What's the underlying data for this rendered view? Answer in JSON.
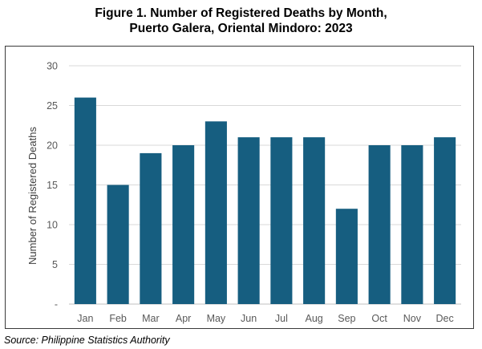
{
  "header": {
    "title_line1": "Figure 1. Number of Registered Deaths by Month,",
    "title_line2": "Puerto Galera, Oriental Mindoro: 2023"
  },
  "footer": {
    "source": "Source: Philippine Statistics Authority"
  },
  "chart_data": {
    "type": "bar",
    "title": "Figure 1. Number of Registered Deaths by Month, Puerto Galera, Oriental Mindoro: 2023",
    "xlabel": "",
    "ylabel": "Number of Registered Deaths",
    "categories": [
      "Jan",
      "Feb",
      "Mar",
      "Apr",
      "May",
      "Jun",
      "Jul",
      "Aug",
      "Sep",
      "Oct",
      "Nov",
      "Dec"
    ],
    "values": [
      26,
      15,
      19,
      20,
      23,
      21,
      21,
      21,
      12,
      20,
      20,
      21
    ],
    "ylim": [
      0,
      30
    ],
    "yticks": [
      {
        "value": 0,
        "label": "-"
      },
      {
        "value": 5,
        "label": "5"
      },
      {
        "value": 10,
        "label": "10"
      },
      {
        "value": 15,
        "label": "15"
      },
      {
        "value": 20,
        "label": "20"
      },
      {
        "value": 25,
        "label": "25"
      },
      {
        "value": 30,
        "label": "30"
      }
    ],
    "grid": true,
    "legend": "none",
    "colors": {
      "bar": "#165E80",
      "grid": "#D9D9D9",
      "axis": "#BFBFBF"
    }
  }
}
